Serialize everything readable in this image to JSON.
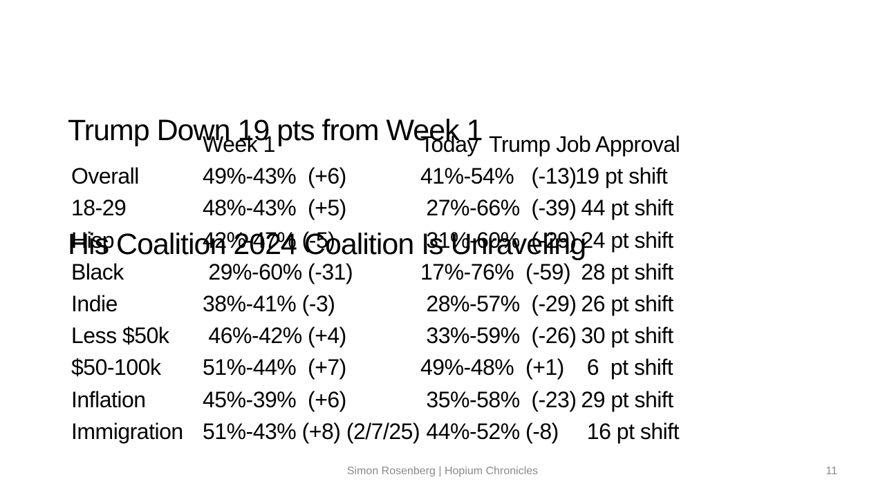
{
  "slide": {
    "title_lines": {
      "line1": "Trump Down 19 pts from Week 1",
      "line2": "His Coalition 2024 Coalition Is Unraveling"
    },
    "table": {
      "header": {
        "week1": "Week 1",
        "today": "Today  Trump Job Approval"
      },
      "rows": [
        {
          "label": "Overall",
          "week1": "49%-43%  (+6)",
          "today": "41%-54%   (-13)",
          "shift": "19 pt shift"
        },
        {
          "label": "18-29",
          "week1": "48%-43%  (+5)",
          "today": " 27%-66%  (-39)",
          "shift": " 44 pt shift"
        },
        {
          "label": "Hisp",
          "week1": "42%-47% (-5)",
          "today": " 31%-60%  (-29)",
          "shift": " 24 pt shift"
        },
        {
          "label": "Black",
          "week1": " 29%-60% (-31)",
          "today": "17%-76%  (-59)",
          "shift": " 28 pt shift"
        },
        {
          "label": "Indie",
          "week1": "38%-41% (-3)",
          "today": " 28%-57%  (-29)",
          "shift": " 26 pt shift"
        },
        {
          "label": "Less $50k",
          "week1": " 46%-42% (+4)",
          "today": " 33%-59%  (-26)",
          "shift": " 30 pt shift"
        },
        {
          "label": "$50-100k",
          "week1": "51%-44%  (+7)",
          "today": "49%-48%  (+1)",
          "shift": "  6  pt shift"
        },
        {
          "label": "Inflation",
          "week1": "45%-39%  (+6)",
          "today": " 35%-58%  (-23)",
          "shift": " 29 pt shift"
        },
        {
          "label": "Immigration",
          "week1": "51%-43% (+8) (2/7/25)",
          "today": " 44%-52% (-8)",
          "shift": "  16 pt shift"
        }
      ]
    },
    "footer": {
      "credit": "Simon Rosenberg | Hopium Chronicles",
      "page_number": "11"
    }
  },
  "colors": {
    "background": "#ffffff",
    "text": "#000000",
    "footer_text": "#8a8a8a"
  }
}
